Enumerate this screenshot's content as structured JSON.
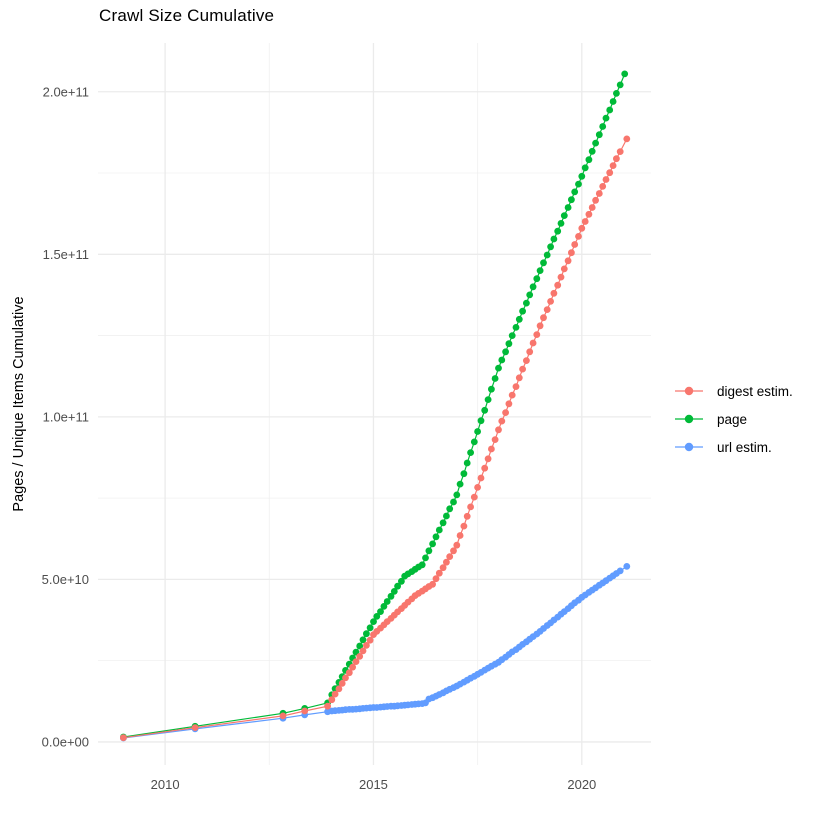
{
  "chart_data": {
    "type": "scatter",
    "title": "Crawl Size Cumulative",
    "xlabel": "",
    "ylabel": "Pages / Unique Items Cumulative",
    "value_unit": "1e10",
    "xlim": [
      2008.39,
      2021.66
    ],
    "ylim_e10": [
      -0.71,
      21.5
    ],
    "grid": "on",
    "grid_color": "#EBEBEB",
    "grid_minor_color": "#F0F0F0",
    "axis_text_color": "#4D4D4D",
    "legend_position": "right",
    "x_ticks": [
      {
        "v": 2010,
        "label": "2010"
      },
      {
        "v": 2015,
        "label": "2015"
      },
      {
        "v": 2020,
        "label": "2020"
      }
    ],
    "y_ticks": [
      {
        "v": 0,
        "label": "0.0e+00"
      },
      {
        "v": 5,
        "label": "5.0e+10"
      },
      {
        "v": 10,
        "label": "1.0e+11"
      },
      {
        "v": 15,
        "label": "1.5e+11"
      },
      {
        "v": 20,
        "label": "2.0e+11"
      }
    ],
    "x_minor": [
      2012.5,
      2017.5
    ],
    "y_minor": [
      2.5,
      7.5,
      12.5,
      17.5
    ],
    "draw_order": [
      1,
      2,
      0
    ],
    "series": [
      {
        "name": "digest estim.",
        "color": "#F8766D",
        "points": [
          [
            2009.0,
            0.13
          ],
          [
            2010.72,
            0.44
          ],
          [
            2012.83,
            0.8
          ],
          [
            2013.35,
            0.95
          ],
          [
            2013.9,
            1.1
          ],
          [
            2014.0,
            1.3
          ],
          [
            2014.08,
            1.47
          ],
          [
            2014.17,
            1.63
          ],
          [
            2014.25,
            1.8
          ],
          [
            2014.33,
            1.97
          ],
          [
            2014.42,
            2.13
          ],
          [
            2014.5,
            2.3
          ],
          [
            2014.58,
            2.47
          ],
          [
            2014.67,
            2.63
          ],
          [
            2014.75,
            2.8
          ],
          [
            2014.83,
            2.97
          ],
          [
            2014.92,
            3.13
          ],
          [
            2015.0,
            3.3
          ],
          [
            2015.08,
            3.4
          ],
          [
            2015.17,
            3.5
          ],
          [
            2015.25,
            3.6
          ],
          [
            2015.33,
            3.7
          ],
          [
            2015.42,
            3.8
          ],
          [
            2015.5,
            3.9
          ],
          [
            2015.58,
            4.0
          ],
          [
            2015.67,
            4.1
          ],
          [
            2015.75,
            4.2
          ],
          [
            2015.83,
            4.3
          ],
          [
            2015.92,
            4.4
          ],
          [
            2016.0,
            4.5
          ],
          [
            2016.08,
            4.57
          ],
          [
            2016.17,
            4.64
          ],
          [
            2016.25,
            4.71
          ],
          [
            2016.33,
            4.78
          ],
          [
            2016.42,
            4.85
          ],
          [
            2016.5,
            5.02
          ],
          [
            2016.58,
            5.19
          ],
          [
            2016.67,
            5.36
          ],
          [
            2016.75,
            5.53
          ],
          [
            2016.83,
            5.7
          ],
          [
            2016.92,
            5.88
          ],
          [
            2017.0,
            6.05
          ],
          [
            2017.08,
            6.35
          ],
          [
            2017.17,
            6.64
          ],
          [
            2017.25,
            6.94
          ],
          [
            2017.33,
            7.23
          ],
          [
            2017.42,
            7.53
          ],
          [
            2017.5,
            7.83
          ],
          [
            2017.58,
            8.12
          ],
          [
            2017.67,
            8.42
          ],
          [
            2017.75,
            8.71
          ],
          [
            2017.83,
            9.01
          ],
          [
            2017.92,
            9.3
          ],
          [
            2018.0,
            9.6
          ],
          [
            2018.08,
            9.87
          ],
          [
            2018.17,
            10.13
          ],
          [
            2018.25,
            10.4
          ],
          [
            2018.33,
            10.67
          ],
          [
            2018.42,
            10.93
          ],
          [
            2018.5,
            11.2
          ],
          [
            2018.58,
            11.47
          ],
          [
            2018.67,
            11.73
          ],
          [
            2018.75,
            12.0
          ],
          [
            2018.83,
            12.27
          ],
          [
            2018.92,
            12.53
          ],
          [
            2019.0,
            12.8
          ],
          [
            2019.08,
            13.05
          ],
          [
            2019.17,
            13.3
          ],
          [
            2019.25,
            13.55
          ],
          [
            2019.33,
            13.8
          ],
          [
            2019.42,
            14.05
          ],
          [
            2019.5,
            14.3
          ],
          [
            2019.58,
            14.55
          ],
          [
            2019.67,
            14.8
          ],
          [
            2019.75,
            15.05
          ],
          [
            2019.83,
            15.3
          ],
          [
            2019.92,
            15.55
          ],
          [
            2020.0,
            15.8
          ],
          [
            2020.08,
            16.01
          ],
          [
            2020.17,
            16.23
          ],
          [
            2020.25,
            16.44
          ],
          [
            2020.33,
            16.66
          ],
          [
            2020.42,
            16.87
          ],
          [
            2020.5,
            17.09
          ],
          [
            2020.58,
            17.3
          ],
          [
            2020.67,
            17.51
          ],
          [
            2020.75,
            17.73
          ],
          [
            2020.83,
            17.94
          ],
          [
            2020.92,
            18.16
          ],
          [
            2021.08,
            18.55
          ]
        ]
      },
      {
        "name": "page",
        "color": "#00BA38",
        "points": [
          [
            2009.0,
            0.15
          ],
          [
            2010.72,
            0.48
          ],
          [
            2012.83,
            0.88
          ],
          [
            2013.35,
            1.03
          ],
          [
            2013.9,
            1.2
          ],
          [
            2014.0,
            1.45
          ],
          [
            2014.08,
            1.64
          ],
          [
            2014.17,
            1.83
          ],
          [
            2014.25,
            2.01
          ],
          [
            2014.33,
            2.2
          ],
          [
            2014.42,
            2.39
          ],
          [
            2014.5,
            2.58
          ],
          [
            2014.58,
            2.76
          ],
          [
            2014.67,
            2.95
          ],
          [
            2014.75,
            3.14
          ],
          [
            2014.83,
            3.33
          ],
          [
            2014.92,
            3.51
          ],
          [
            2015.0,
            3.7
          ],
          [
            2015.08,
            3.86
          ],
          [
            2015.17,
            4.01
          ],
          [
            2015.25,
            4.17
          ],
          [
            2015.33,
            4.32
          ],
          [
            2015.42,
            4.48
          ],
          [
            2015.5,
            4.63
          ],
          [
            2015.58,
            4.79
          ],
          [
            2015.67,
            4.94
          ],
          [
            2015.75,
            5.1
          ],
          [
            2015.83,
            5.17
          ],
          [
            2015.92,
            5.24
          ],
          [
            2016.0,
            5.31
          ],
          [
            2016.08,
            5.38
          ],
          [
            2016.17,
            5.45
          ],
          [
            2016.25,
            5.66
          ],
          [
            2016.33,
            5.88
          ],
          [
            2016.42,
            6.09
          ],
          [
            2016.5,
            6.31
          ],
          [
            2016.58,
            6.52
          ],
          [
            2016.67,
            6.74
          ],
          [
            2016.75,
            6.95
          ],
          [
            2016.83,
            7.17
          ],
          [
            2016.92,
            7.38
          ],
          [
            2017.0,
            7.6
          ],
          [
            2017.08,
            7.93
          ],
          [
            2017.17,
            8.25
          ],
          [
            2017.25,
            8.58
          ],
          [
            2017.33,
            8.9
          ],
          [
            2017.42,
            9.23
          ],
          [
            2017.5,
            9.55
          ],
          [
            2017.58,
            9.88
          ],
          [
            2017.67,
            10.2
          ],
          [
            2017.75,
            10.53
          ],
          [
            2017.83,
            10.85
          ],
          [
            2017.92,
            11.18
          ],
          [
            2018.0,
            11.5
          ],
          [
            2018.08,
            11.75
          ],
          [
            2018.17,
            12.0
          ],
          [
            2018.25,
            12.25
          ],
          [
            2018.33,
            12.5
          ],
          [
            2018.42,
            12.75
          ],
          [
            2018.5,
            13.0
          ],
          [
            2018.58,
            13.25
          ],
          [
            2018.67,
            13.5
          ],
          [
            2018.75,
            13.75
          ],
          [
            2018.83,
            14.0
          ],
          [
            2018.92,
            14.25
          ],
          [
            2019.0,
            14.5
          ],
          [
            2019.08,
            14.74
          ],
          [
            2019.17,
            14.98
          ],
          [
            2019.25,
            15.23
          ],
          [
            2019.33,
            15.47
          ],
          [
            2019.42,
            15.71
          ],
          [
            2019.5,
            15.95
          ],
          [
            2019.58,
            16.19
          ],
          [
            2019.67,
            16.44
          ],
          [
            2019.75,
            16.68
          ],
          [
            2019.83,
            16.92
          ],
          [
            2019.92,
            17.16
          ],
          [
            2020.0,
            17.4
          ],
          [
            2020.08,
            17.66
          ],
          [
            2020.17,
            17.91
          ],
          [
            2020.25,
            18.17
          ],
          [
            2020.33,
            18.42
          ],
          [
            2020.42,
            18.68
          ],
          [
            2020.5,
            18.93
          ],
          [
            2020.58,
            19.19
          ],
          [
            2020.67,
            19.44
          ],
          [
            2020.75,
            19.7
          ],
          [
            2020.83,
            19.95
          ],
          [
            2020.92,
            20.21
          ],
          [
            2021.03,
            20.55
          ]
        ]
      },
      {
        "name": "url estim.",
        "color": "#619CFF",
        "points": [
          [
            2009.0,
            0.12
          ],
          [
            2010.72,
            0.4
          ],
          [
            2012.83,
            0.73
          ],
          [
            2013.35,
            0.83
          ],
          [
            2013.9,
            0.93
          ],
          [
            2014.0,
            0.95
          ],
          [
            2014.08,
            0.96
          ],
          [
            2014.17,
            0.97
          ],
          [
            2014.25,
            0.98
          ],
          [
            2014.33,
            0.99
          ],
          [
            2014.42,
            1.0
          ],
          [
            2014.5,
            1.0
          ],
          [
            2014.58,
            1.01
          ],
          [
            2014.67,
            1.02
          ],
          [
            2014.75,
            1.03
          ],
          [
            2014.83,
            1.04
          ],
          [
            2014.92,
            1.05
          ],
          [
            2015.0,
            1.06
          ],
          [
            2015.08,
            1.06
          ],
          [
            2015.17,
            1.07
          ],
          [
            2015.25,
            1.08
          ],
          [
            2015.33,
            1.09
          ],
          [
            2015.42,
            1.1
          ],
          [
            2015.5,
            1.1
          ],
          [
            2015.58,
            1.11
          ],
          [
            2015.67,
            1.12
          ],
          [
            2015.75,
            1.13
          ],
          [
            2015.83,
            1.14
          ],
          [
            2015.92,
            1.15
          ],
          [
            2016.0,
            1.16
          ],
          [
            2016.08,
            1.17
          ],
          [
            2016.17,
            1.18
          ],
          [
            2016.25,
            1.2
          ],
          [
            2016.33,
            1.32
          ],
          [
            2016.42,
            1.36
          ],
          [
            2016.5,
            1.41
          ],
          [
            2016.58,
            1.46
          ],
          [
            2016.67,
            1.51
          ],
          [
            2016.75,
            1.57
          ],
          [
            2016.83,
            1.62
          ],
          [
            2016.92,
            1.67
          ],
          [
            2017.0,
            1.72
          ],
          [
            2017.08,
            1.78
          ],
          [
            2017.17,
            1.84
          ],
          [
            2017.25,
            1.9
          ],
          [
            2017.33,
            1.96
          ],
          [
            2017.42,
            2.02
          ],
          [
            2017.5,
            2.08
          ],
          [
            2017.58,
            2.14
          ],
          [
            2017.67,
            2.21
          ],
          [
            2017.75,
            2.27
          ],
          [
            2017.83,
            2.33
          ],
          [
            2017.92,
            2.39
          ],
          [
            2018.0,
            2.45
          ],
          [
            2018.08,
            2.53
          ],
          [
            2018.17,
            2.61
          ],
          [
            2018.25,
            2.69
          ],
          [
            2018.33,
            2.77
          ],
          [
            2018.42,
            2.84
          ],
          [
            2018.5,
            2.92
          ],
          [
            2018.58,
            3.0
          ],
          [
            2018.67,
            3.08
          ],
          [
            2018.75,
            3.16
          ],
          [
            2018.83,
            3.24
          ],
          [
            2018.92,
            3.32
          ],
          [
            2019.0,
            3.4
          ],
          [
            2019.08,
            3.49
          ],
          [
            2019.17,
            3.58
          ],
          [
            2019.25,
            3.66
          ],
          [
            2019.33,
            3.75
          ],
          [
            2019.42,
            3.84
          ],
          [
            2019.5,
            3.93
          ],
          [
            2019.58,
            4.01
          ],
          [
            2019.67,
            4.1
          ],
          [
            2019.75,
            4.19
          ],
          [
            2019.83,
            4.28
          ],
          [
            2019.92,
            4.36
          ],
          [
            2020.0,
            4.45
          ],
          [
            2020.08,
            4.52
          ],
          [
            2020.17,
            4.6
          ],
          [
            2020.25,
            4.67
          ],
          [
            2020.33,
            4.74
          ],
          [
            2020.42,
            4.82
          ],
          [
            2020.5,
            4.89
          ],
          [
            2020.58,
            4.96
          ],
          [
            2020.67,
            5.04
          ],
          [
            2020.75,
            5.11
          ],
          [
            2020.83,
            5.18
          ],
          [
            2020.92,
            5.26
          ],
          [
            2021.08,
            5.4
          ]
        ]
      }
    ]
  }
}
